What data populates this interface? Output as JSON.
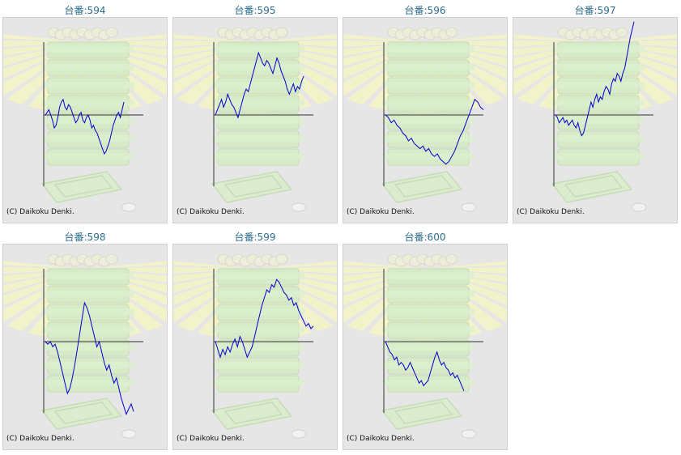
{
  "copyright": "(C) Daikoku Denki.",
  "colors": {
    "line": "#0000cc",
    "axis": "#333333",
    "label": "#2a6e8f",
    "background": "#e6e6e6"
  },
  "background_art": [
    "sunburst-rays",
    "stacked-pachinko-trays",
    "coin-tray",
    "coin-icon"
  ],
  "chart_data": [
    {
      "type": "line",
      "title": "台番:594",
      "values": [
        0.0,
        0.1,
        0.2,
        0.0,
        -0.2,
        -0.5,
        -0.4,
        -0.1,
        0.3,
        0.5,
        0.6,
        0.3,
        0.2,
        0.4,
        0.3,
        0.1,
        -0.1,
        -0.3,
        -0.2,
        0.0,
        0.1,
        -0.2,
        -0.3,
        -0.1,
        0.0,
        -0.2,
        -0.5,
        -0.4,
        -0.6,
        -0.7,
        -0.9,
        -1.1,
        -1.3,
        -1.5,
        -1.4,
        -1.2,
        -1.0,
        -0.7,
        -0.4,
        -0.2,
        0.0,
        0.1,
        -0.1,
        0.2,
        0.5
      ]
    },
    {
      "type": "line",
      "title": "台番:595",
      "values": [
        0.0,
        0.2,
        0.4,
        0.6,
        0.3,
        0.5,
        0.8,
        0.6,
        0.4,
        0.3,
        0.1,
        -0.1,
        0.2,
        0.5,
        0.8,
        1.0,
        0.9,
        1.2,
        1.5,
        1.8,
        2.1,
        2.4,
        2.2,
        2.0,
        1.9,
        2.1,
        2.0,
        1.8,
        1.6,
        1.9,
        2.2,
        2.0,
        1.7,
        1.5,
        1.3,
        1.0,
        0.8,
        1.0,
        1.2,
        0.9,
        1.1,
        1.0,
        1.3,
        1.5
      ]
    },
    {
      "type": "line",
      "title": "台番:596",
      "values": [
        0.0,
        -0.1,
        -0.3,
        -0.2,
        -0.4,
        -0.5,
        -0.7,
        -0.8,
        -1.0,
        -0.9,
        -1.1,
        -1.2,
        -1.3,
        -1.2,
        -1.4,
        -1.3,
        -1.5,
        -1.6,
        -1.5,
        -1.7,
        -1.8,
        -1.9,
        -1.8,
        -1.6,
        -1.4,
        -1.1,
        -0.8,
        -0.6,
        -0.3,
        0.0,
        0.3,
        0.6,
        0.5,
        0.3,
        0.2
      ]
    },
    {
      "type": "line",
      "title": "台番:597",
      "values": [
        0.0,
        -0.1,
        -0.3,
        -0.2,
        -0.1,
        -0.3,
        -0.2,
        -0.4,
        -0.3,
        -0.2,
        -0.4,
        -0.5,
        -0.3,
        -0.6,
        -0.8,
        -0.7,
        -0.4,
        -0.1,
        0.2,
        0.5,
        0.3,
        0.6,
        0.8,
        0.5,
        0.7,
        0.6,
        0.9,
        1.1,
        1.0,
        0.8,
        1.2,
        1.4,
        1.3,
        1.6,
        1.5,
        1.3,
        1.6,
        1.8,
        2.2,
        2.6,
        3.0,
        3.3,
        3.6
      ]
    },
    {
      "type": "line",
      "title": "台番:598",
      "values": [
        0.0,
        -0.1,
        0.0,
        -0.2,
        -0.1,
        -0.4,
        -0.8,
        -1.2,
        -1.6,
        -2.0,
        -1.8,
        -1.4,
        -0.9,
        -0.3,
        0.3,
        0.9,
        1.5,
        1.3,
        1.0,
        0.6,
        0.2,
        -0.2,
        0.0,
        -0.4,
        -0.8,
        -1.1,
        -0.9,
        -1.3,
        -1.6,
        -1.4,
        -1.8,
        -2.2,
        -2.5,
        -2.8,
        -2.6,
        -2.4,
        -2.7
      ]
    },
    {
      "type": "line",
      "title": "台番:599",
      "values": [
        0.0,
        -0.3,
        -0.6,
        -0.3,
        -0.5,
        -0.2,
        -0.4,
        -0.1,
        0.1,
        -0.2,
        0.2,
        0.0,
        -0.3,
        -0.6,
        -0.4,
        -0.2,
        0.2,
        0.6,
        1.0,
        1.4,
        1.7,
        2.0,
        1.9,
        2.2,
        2.1,
        2.4,
        2.3,
        2.1,
        1.9,
        1.8,
        1.6,
        1.7,
        1.4,
        1.5,
        1.2,
        1.0,
        0.8,
        0.6,
        0.7,
        0.5,
        0.6
      ]
    },
    {
      "type": "line",
      "title": "台番:600",
      "values": [
        0.0,
        -0.2,
        -0.4,
        -0.5,
        -0.7,
        -0.6,
        -0.9,
        -0.8,
        -0.9,
        -1.1,
        -1.0,
        -0.8,
        -1.0,
        -1.2,
        -1.4,
        -1.6,
        -1.5,
        -1.7,
        -1.6,
        -1.5,
        -1.2,
        -0.9,
        -0.6,
        -0.4,
        -0.7,
        -0.9,
        -0.8,
        -1.0,
        -1.1,
        -1.3,
        -1.2,
        -1.4,
        -1.3,
        -1.5,
        -1.7,
        -1.9
      ]
    }
  ]
}
